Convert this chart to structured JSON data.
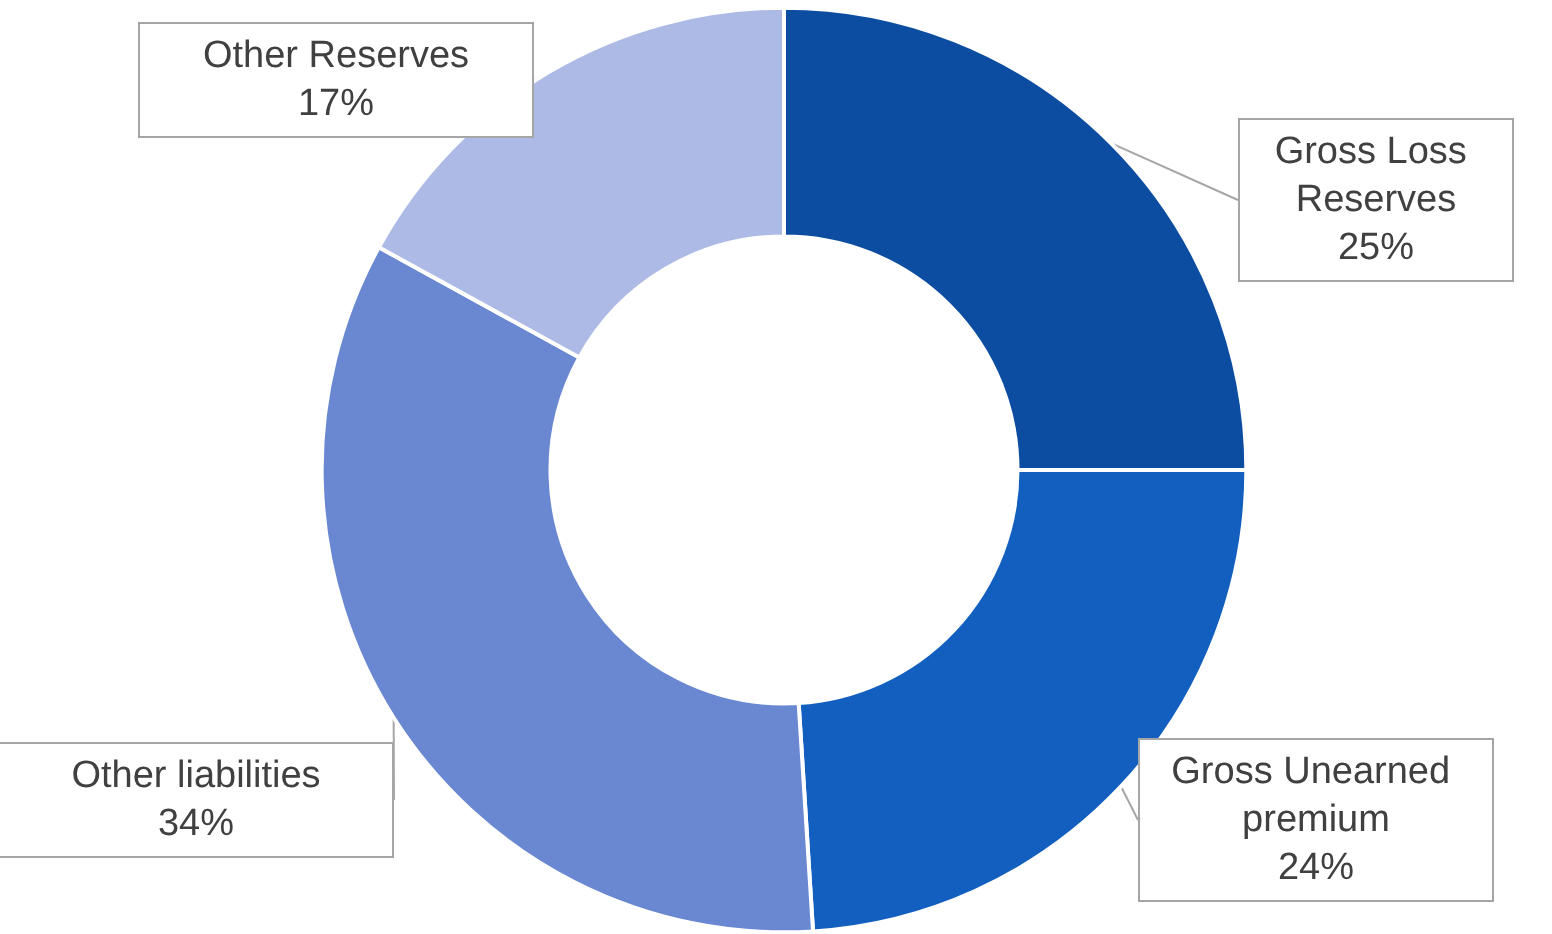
{
  "chart_data": {
    "type": "donut",
    "categories": [
      "Gross Loss Reserves",
      "Gross Unearned premium",
      "Other liabilities",
      "Other Reserves"
    ],
    "values": [
      25,
      24,
      34,
      17
    ],
    "value_labels": [
      "25%",
      "24%",
      "34%",
      "17%"
    ],
    "colors": [
      "#0c4da2",
      "#135fbf",
      "#6a88d2",
      "#adbae5"
    ],
    "legend": false
  }
}
